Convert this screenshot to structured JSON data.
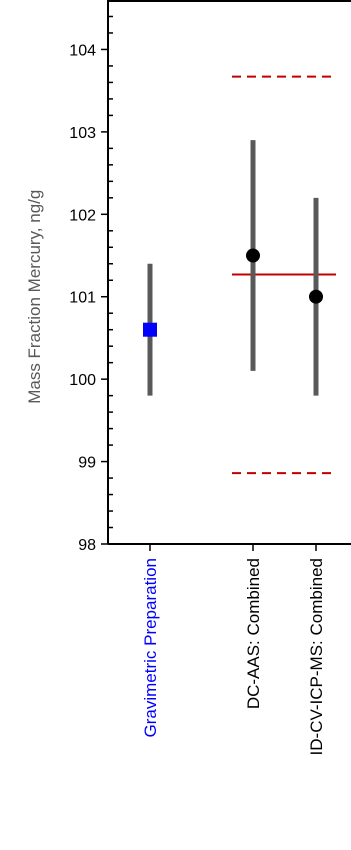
{
  "chart_data": {
    "type": "scatter",
    "ylabel": "Mass Fraction Mercury, ng/g",
    "ylim": [
      98,
      104.6
    ],
    "yticks": [
      98,
      99,
      100,
      101,
      102,
      103,
      104
    ],
    "grid": false,
    "categories": [
      "Gravimetric Preparation",
      "DC-AAS: Combined",
      "ID-CV-ICP-MS: Combined"
    ],
    "series": [
      {
        "marker": "square",
        "color": "#0000ff",
        "points": [
          {
            "category": "Gravimetric Preparation",
            "value": 100.6,
            "lower": 99.8,
            "upper": 101.4
          }
        ]
      },
      {
        "marker": "circle",
        "color": "#000000",
        "points": [
          {
            "category": "DC-AAS: Combined",
            "value": 101.5,
            "lower": 100.1,
            "upper": 102.9
          },
          {
            "category": "ID-CV-ICP-MS: Combined",
            "value": 101.0,
            "lower": 99.8,
            "upper": 102.2
          }
        ]
      }
    ],
    "reference_lines": [
      {
        "value": 101.27,
        "style": "solid",
        "color": "#c00000"
      },
      {
        "value": 103.67,
        "style": "dashed",
        "color": "#c00000"
      },
      {
        "value": 98.86,
        "style": "dashed",
        "color": "#c00000"
      }
    ],
    "category_label_colors": [
      "#0000ff",
      "#000000",
      "#000000"
    ],
    "errorbar_color": "#595959"
  }
}
